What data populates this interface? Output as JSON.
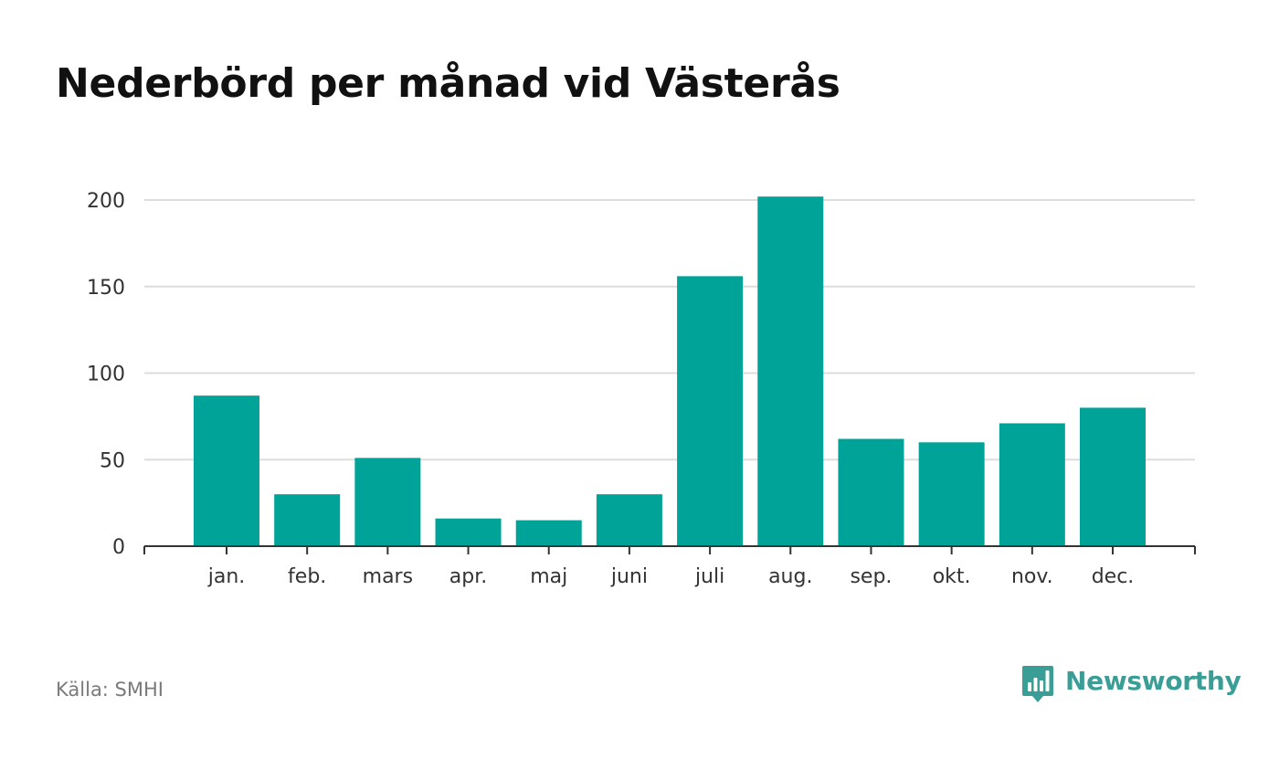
{
  "title": "Nederbörd per månad vid Västerås",
  "source": "Källa: SMHI",
  "brand": {
    "name": "Newsworthy",
    "icon": "bar-chart-speech-bubble-icon",
    "color": "#3a9e96"
  },
  "colors": {
    "bar": "#00a398",
    "grid": "#dddddd",
    "axis": "#333333",
    "tick_text": "#333333"
  },
  "chart_data": {
    "type": "bar",
    "categories": [
      "jan.",
      "feb.",
      "mars",
      "apr.",
      "maj",
      "juni",
      "juli",
      "aug.",
      "sep.",
      "okt.",
      "nov.",
      "dec."
    ],
    "values": [
      87,
      30,
      51,
      16,
      15,
      30,
      156,
      202,
      62,
      60,
      71,
      80
    ],
    "ylim": [
      0,
      200
    ],
    "yticks": [
      0,
      50,
      100,
      150,
      200
    ],
    "xlabel": "",
    "ylabel": "",
    "grid": true,
    "legend": "none"
  }
}
